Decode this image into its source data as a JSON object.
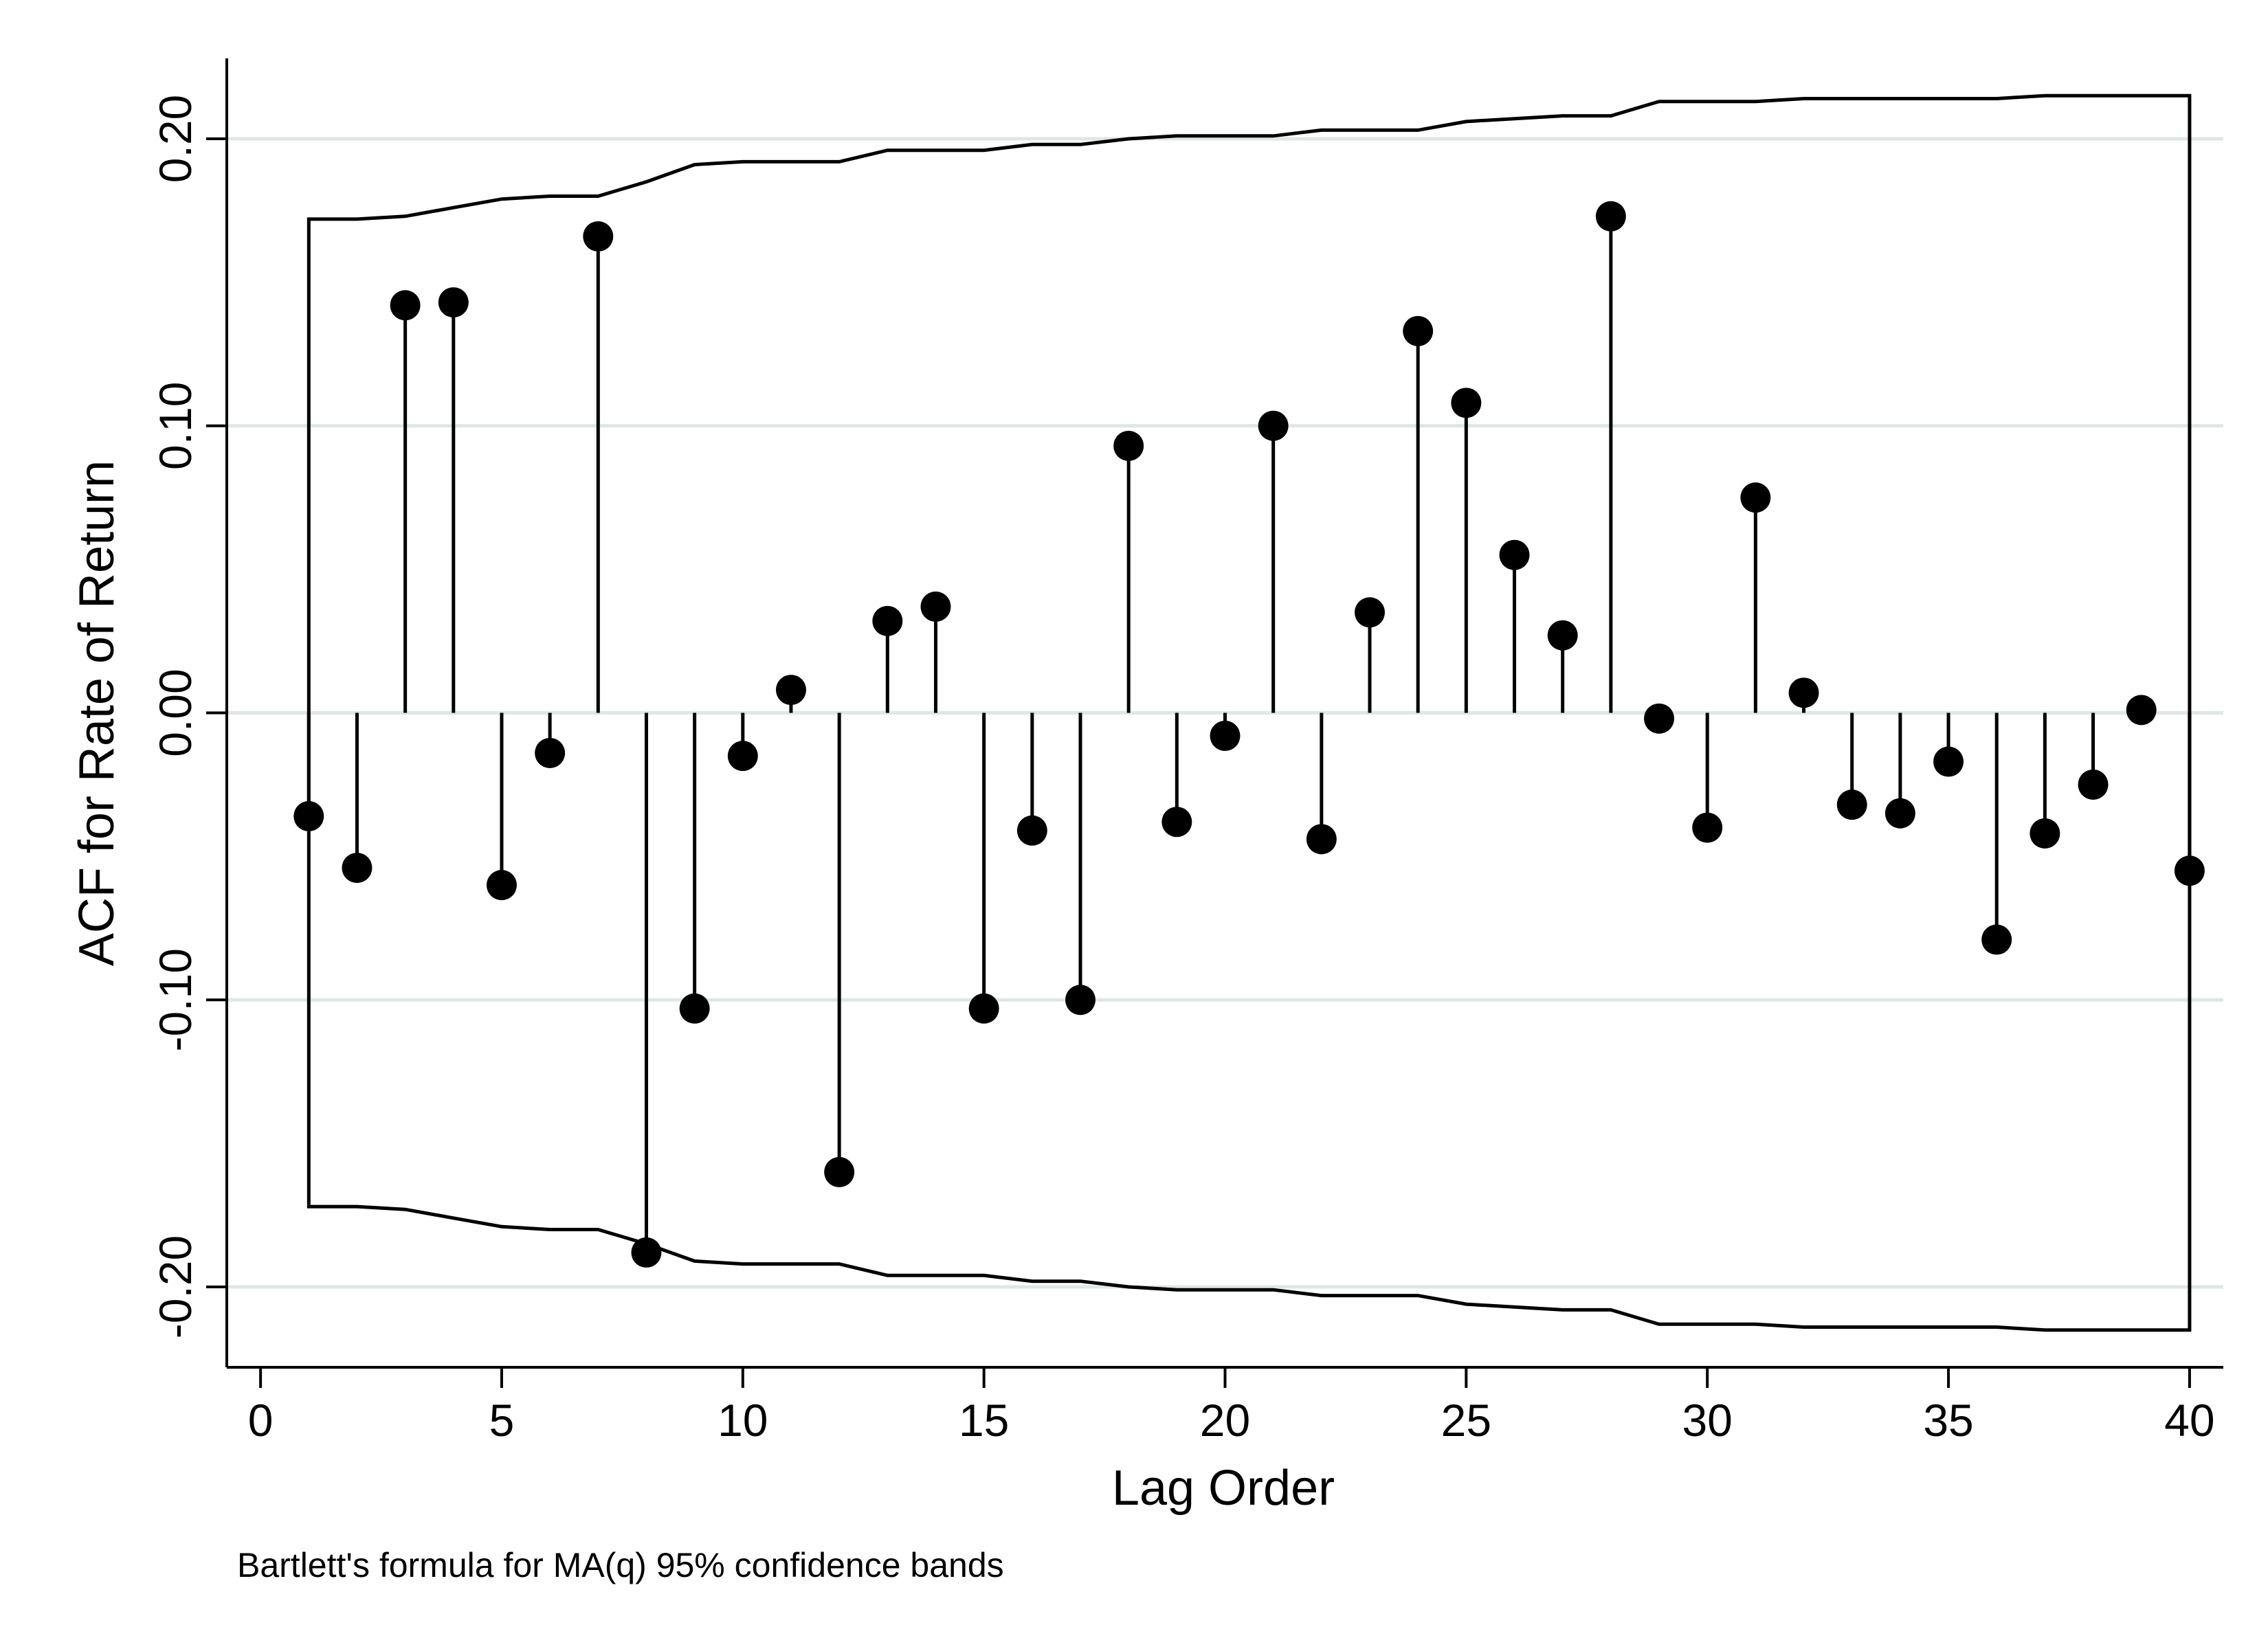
{
  "chart_data": {
    "type": "stem",
    "xlabel": "Lag Order",
    "ylabel": "ACF for Rate of Return",
    "note": "Bartlett's formula for MA(q) 95% confidence bands",
    "xlim": [
      -0.7,
      40.7
    ],
    "ylim": [
      -0.228,
      0.228
    ],
    "x_ticks": [
      0,
      5,
      10,
      15,
      20,
      25,
      30,
      35,
      40
    ],
    "y_ticks": [
      -0.2,
      -0.1,
      0.0,
      0.1,
      0.2
    ],
    "y_tick_labels": [
      "-0.20",
      "-0.10",
      "0.00",
      "0.10",
      "0.20"
    ],
    "grid": "horizontal",
    "lags": [
      1,
      2,
      3,
      4,
      5,
      6,
      7,
      8,
      9,
      10,
      11,
      12,
      13,
      14,
      15,
      16,
      17,
      18,
      19,
      20,
      21,
      22,
      23,
      24,
      25,
      26,
      27,
      28,
      29,
      30,
      31,
      32,
      33,
      34,
      35,
      36,
      37,
      38,
      39,
      40
    ],
    "acf": [
      -0.036,
      -0.054,
      0.142,
      0.143,
      -0.06,
      -0.014,
      0.166,
      -0.188,
      -0.103,
      -0.015,
      0.008,
      -0.16,
      0.032,
      0.037,
      -0.103,
      -0.041,
      -0.1,
      0.093,
      -0.038,
      -0.008,
      0.1,
      -0.044,
      0.035,
      0.133,
      0.108,
      0.055,
      0.027,
      0.173,
      -0.002,
      -0.04,
      0.075,
      0.007,
      -0.032,
      -0.035,
      -0.017,
      -0.079,
      -0.042,
      -0.025,
      0.001,
      -0.055
    ],
    "confidence_band": {
      "name": "95% confidence bands",
      "lags": [
        1,
        2,
        3,
        4,
        5,
        6,
        7,
        8,
        9,
        10,
        11,
        12,
        13,
        14,
        15,
        16,
        17,
        18,
        19,
        20,
        21,
        22,
        23,
        24,
        25,
        26,
        27,
        28,
        29,
        30,
        31,
        32,
        33,
        34,
        35,
        36,
        37,
        38,
        39,
        40
      ],
      "upper": [
        0.172,
        0.172,
        0.173,
        0.176,
        0.179,
        0.18,
        0.18,
        0.185,
        0.191,
        0.192,
        0.192,
        0.192,
        0.196,
        0.196,
        0.196,
        0.198,
        0.198,
        0.2,
        0.201,
        0.201,
        0.201,
        0.203,
        0.203,
        0.203,
        0.206,
        0.207,
        0.208,
        0.208,
        0.213,
        0.213,
        0.213,
        0.214,
        0.214,
        0.214,
        0.214,
        0.214,
        0.215,
        0.215,
        0.215,
        0.215
      ]
    }
  }
}
